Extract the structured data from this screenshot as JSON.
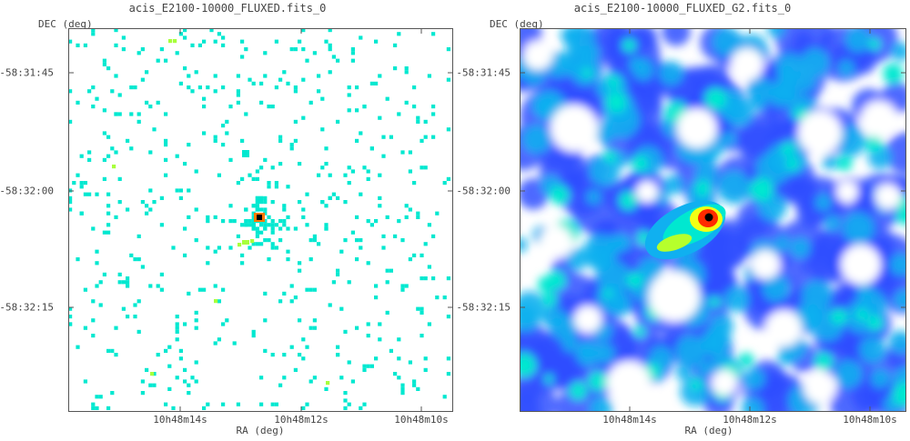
{
  "panels": [
    {
      "title": "acis_E2100-10000_FLUXED.fits_0",
      "ylabel": "DEC (deg)",
      "xlabel": "RA (deg)",
      "yticks": [
        "-58:31:45",
        "-58:32:00",
        "-58:32:15"
      ],
      "xticks": [
        "10h48m14s",
        "10h48m12s",
        "10h48m10s"
      ],
      "image": "sparse-count-map",
      "colors": {
        "count": "#00e8d0",
        "count_high": "#a8ff3c",
        "peak": "#ff7a00",
        "core": "#000000",
        "background": "#ffffff"
      }
    },
    {
      "title": "acis_E2100-10000_FLUXED_G2.fits_0",
      "ylabel": "DEC (deg)",
      "xlabel": "RA (deg)",
      "yticks": [
        "-58:31:45",
        "-58:32:00",
        "-58:32:15"
      ],
      "xticks": [
        "10h48m14s",
        "10h48m12s",
        "10h48m10s"
      ],
      "image": "smoothed-intensity-map",
      "colors": {
        "low": "#2f4fff",
        "mid": "#10b0f0",
        "high": "#00e8d0",
        "peak": "#ff2a00",
        "core": "#000000",
        "background": "#ffffff"
      }
    }
  ]
}
